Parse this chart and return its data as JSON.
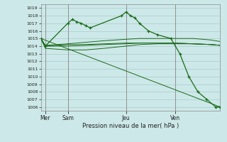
{
  "background_color": "#cde8e8",
  "grid_color": "#aacccc",
  "line_color": "#1a6b1a",
  "title": "Pression niveau de la mer( hPa )",
  "ylim": [
    1005.5,
    1019.5
  ],
  "xlim": [
    0,
    20
  ],
  "day_positions": [
    0.5,
    3.0,
    9.5,
    15.0
  ],
  "day_labels": [
    "Mer",
    "Sam",
    "Jeu",
    "Ven"
  ],
  "vline_positions": [
    0.5,
    3.0,
    9.5,
    15.0
  ],
  "main_line_x": [
    0,
    0.5,
    3.0,
    3.5,
    4.0,
    4.5,
    5.0,
    5.5,
    9.0,
    9.5,
    10.0,
    10.5,
    11.0,
    12.0,
    13.0,
    14.5,
    15.5,
    16.5,
    17.5,
    18.5,
    19.5,
    20.0
  ],
  "main_line_y": [
    1015.0,
    1014.0,
    1017.0,
    1017.5,
    1017.2,
    1017.0,
    1016.7,
    1016.4,
    1018.0,
    1018.5,
    1018.0,
    1017.7,
    1017.0,
    1016.0,
    1015.5,
    1015.0,
    1013.0,
    1010.0,
    1008.0,
    1007.0,
    1006.0,
    1006.0
  ],
  "flat_line1_x": [
    0,
    0.5,
    3.0,
    5.0,
    7.0,
    9.5,
    11.0,
    13.0,
    15.0,
    17.0,
    19.0,
    20.0
  ],
  "flat_line1_y": [
    1015.0,
    1014.1,
    1014.3,
    1014.5,
    1014.7,
    1014.9,
    1015.0,
    1015.0,
    1015.0,
    1015.0,
    1014.8,
    1014.6
  ],
  "flat_line2_x": [
    0,
    0.5,
    3.0,
    5.0,
    7.0,
    9.5,
    11.0,
    13.0,
    15.0,
    17.0,
    19.0,
    20.0
  ],
  "flat_line2_y": [
    1015.0,
    1013.7,
    1013.5,
    1013.5,
    1013.7,
    1014.0,
    1014.2,
    1014.3,
    1014.3,
    1014.3,
    1014.2,
    1014.1
  ],
  "flat_line3_x": [
    0,
    0.5,
    3.0,
    5.0,
    7.0,
    9.5,
    11.0,
    13.0,
    15.0,
    17.0,
    19.0,
    20.0
  ],
  "flat_line3_y": [
    1015.0,
    1014.0,
    1014.0,
    1014.1,
    1014.2,
    1014.3,
    1014.4,
    1014.4,
    1014.4,
    1014.3,
    1014.2,
    1014.1
  ],
  "flat_line4_x": [
    0,
    0.5,
    3.0,
    5.0,
    7.0,
    9.5,
    11.0,
    13.0,
    15.0,
    17.0,
    19.0,
    20.0
  ],
  "flat_line4_y": [
    1015.0,
    1014.0,
    1014.2,
    1014.2,
    1014.3,
    1014.4,
    1014.4,
    1014.4,
    1014.4,
    1014.3,
    1014.2,
    1014.1
  ],
  "diag_line_x": [
    0,
    20.0
  ],
  "diag_line_y": [
    1015.0,
    1006.0
  ]
}
